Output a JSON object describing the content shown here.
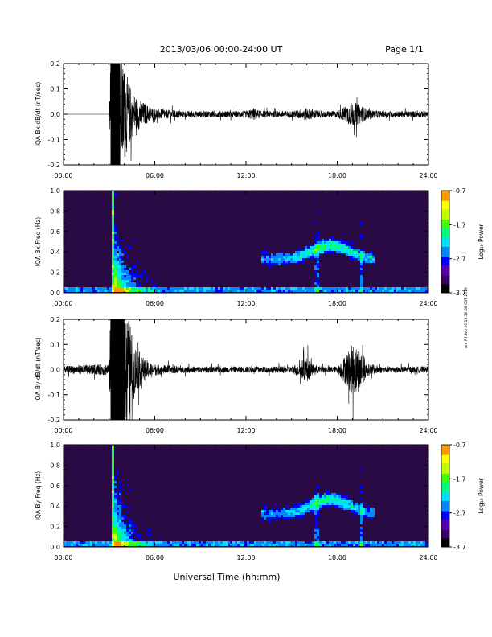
{
  "header": {
    "date_range": "2013/03/06  00:00-24:00 UT",
    "page": "Page 1/1"
  },
  "footer": {
    "xaxis_title": "Universal Time (hh:mm)",
    "side_stamp": "nnl Fri Sep 20 13:50:58 CST 2019"
  },
  "colors": {
    "background": "#ffffff",
    "trace": "#000000",
    "spectrogram_bg": "#2a0a45",
    "colorbar": [
      "#000000",
      "#3a0066",
      "#5a00aa",
      "#0000ff",
      "#0088ff",
      "#00e0ff",
      "#00ff80",
      "#40ff00",
      "#c0ff00",
      "#ffff00",
      "#ff9900",
      "#ff0000"
    ]
  },
  "chart_data": [
    {
      "type": "line",
      "ylabel": "IQA Bx dB/dt (nT/sec)",
      "ylim": [
        -0.2,
        0.2
      ],
      "yticks": [
        "0.2",
        "0.1",
        "0.0",
        "-0.1",
        "-0.2"
      ],
      "xlim": [
        0,
        24
      ],
      "xticks": [
        "00:00",
        "06:00",
        "12:00",
        "18:00",
        "24:00"
      ],
      "series": [
        {
          "x": [
            0,
            1,
            2,
            3,
            3.1,
            3.4,
            3.7,
            4.0,
            4.3,
            4.7,
            5.2,
            5.8,
            6.5,
            8,
            10,
            12,
            12.5,
            13,
            14,
            15,
            16,
            16.5,
            17,
            18,
            19.0,
            19.5,
            20,
            21,
            22,
            23,
            24
          ],
          "y": [
            0.0,
            0.0,
            0.0,
            0.0,
            0.2,
            0.2,
            0.19,
            0.15,
            0.1,
            0.06,
            0.04,
            0.02,
            0.015,
            0.01,
            0.01,
            0.01,
            0.02,
            0.01,
            0.01,
            0.01,
            0.02,
            0.015,
            0.01,
            0.01,
            0.04,
            0.03,
            0.015,
            0.01,
            0.01,
            0.01,
            0.01
          ]
        }
      ]
    },
    {
      "type": "heatmap",
      "ylabel": "IQA Bx Freq (Hz)",
      "ylim": [
        0.0,
        1.0
      ],
      "yticks": [
        "1.0",
        "0.8",
        "0.6",
        "0.4",
        "0.2",
        "0.0"
      ],
      "xlim": [
        0,
        24
      ],
      "xticks": [
        "00:00",
        "06:00",
        "12:00",
        "18:00",
        "24:00"
      ],
      "colorbar": {
        "label": "Log₁₀ Power",
        "ticks": [
          "-0.7",
          "-1.7",
          "-2.7",
          "-3.7"
        ],
        "range": [
          -3.7,
          -0.7
        ]
      }
    },
    {
      "type": "line",
      "ylabel": "IQA By dB/dt (nT/sec)",
      "ylim": [
        -0.2,
        0.2
      ],
      "yticks": [
        "0.2",
        "0.1",
        "0.0",
        "-0.1",
        "-0.2"
      ],
      "xlim": [
        0,
        24
      ],
      "xticks": [
        "00:00",
        "06:00",
        "12:00",
        "18:00",
        "24:00"
      ],
      "series": [
        {
          "x": [
            0,
            1,
            2,
            3,
            3.1,
            3.4,
            3.7,
            4.0,
            4.3,
            4.7,
            5.2,
            5.8,
            6.5,
            8,
            10,
            12,
            13,
            14,
            15,
            16,
            16.5,
            17,
            18,
            19.0,
            19.5,
            20,
            21,
            22,
            23,
            24
          ],
          "y": [
            0.01,
            0.015,
            0.015,
            0.02,
            0.2,
            0.2,
            0.2,
            0.2,
            0.16,
            0.08,
            0.04,
            0.02,
            0.015,
            0.01,
            0.01,
            0.01,
            0.01,
            0.01,
            0.01,
            0.04,
            0.015,
            0.01,
            0.01,
            0.08,
            0.07,
            0.02,
            0.01,
            0.01,
            0.01,
            0.01
          ]
        }
      ]
    },
    {
      "type": "heatmap",
      "ylabel": "IQA By Freq (Hz)",
      "ylim": [
        0.0,
        1.0
      ],
      "yticks": [
        "1.0",
        "0.8",
        "0.6",
        "0.4",
        "0.2",
        "0.0"
      ],
      "xlim": [
        0,
        24
      ],
      "xticks": [
        "00:00",
        "06:00",
        "12:00",
        "18:00",
        "24:00"
      ],
      "colorbar": {
        "label": "Log₁₀ Power",
        "ticks": [
          "-0.7",
          "-1.7",
          "-2.7",
          "-3.7"
        ],
        "range": [
          -3.7,
          -0.7
        ]
      }
    }
  ]
}
